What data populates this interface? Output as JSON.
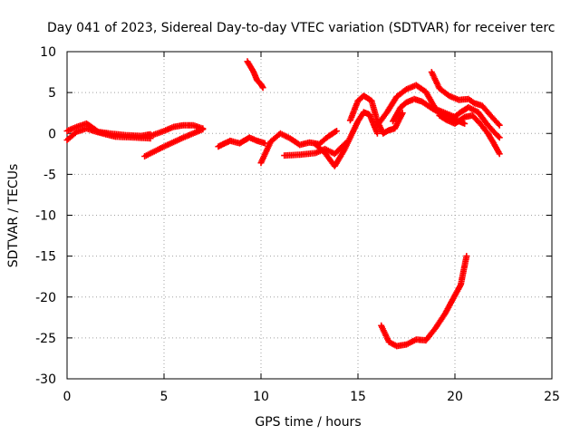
{
  "chart_data": {
    "type": "scatter",
    "title": "Day 041 of 2023, Sidereal Day-to-day VTEC variation (SDTVAR) for receiver terc",
    "xlabel": "GPS time / hours",
    "ylabel": "SDTVAR / TECUs",
    "xlim": [
      0,
      25
    ],
    "ylim": [
      -30,
      10
    ],
    "xticks": [
      0,
      5,
      10,
      15,
      20,
      25
    ],
    "yticks": [
      10,
      5,
      0,
      -5,
      -10,
      -15,
      -20,
      -25,
      -30
    ],
    "grid": true,
    "marker": "plus",
    "color": "#ff0000",
    "series": [
      {
        "name": "s1",
        "x": [
          0,
          0.5,
          1.0,
          1.2,
          1.6,
          2.2,
          3.0,
          3.8,
          4.3
        ],
        "y": [
          0.3,
          0.8,
          1.2,
          0.9,
          0.2,
          0,
          -0.2,
          -0.3,
          -0.1
        ]
      },
      {
        "name": "s2",
        "x": [
          0,
          0.5,
          1.0,
          1.5,
          2.5,
          3.5,
          4.3
        ],
        "y": [
          -0.8,
          0.2,
          0.6,
          0.2,
          -0.4,
          -0.5,
          -0.6
        ]
      },
      {
        "name": "s3",
        "x": [
          4.0,
          5.0,
          6.0,
          7.0
        ],
        "y": [
          -2.8,
          -1.6,
          -0.5,
          0.5
        ]
      },
      {
        "name": "s4",
        "x": [
          4.3,
          5.0,
          5.5,
          6.0,
          6.5,
          7.0
        ],
        "y": [
          -0.3,
          0.3,
          0.8,
          1.0,
          1.0,
          0.6
        ]
      },
      {
        "name": "s5",
        "x": [
          7.8,
          8.4,
          8.9,
          9.4,
          9.8,
          10.2
        ],
        "y": [
          -1.6,
          -0.9,
          -1.2,
          -0.5,
          -0.9,
          -1.2
        ]
      },
      {
        "name": "s6",
        "x": [
          9.3,
          9.6,
          9.8,
          10.0,
          10.1
        ],
        "y": [
          8.8,
          7.6,
          6.5,
          6.0,
          5.6
        ]
      },
      {
        "name": "s7",
        "x": [
          10.0,
          10.5,
          11.0,
          11.5,
          12.0,
          12.5,
          13.0,
          13.5,
          13.9
        ],
        "y": [
          -3.6,
          -1.0,
          0,
          -0.6,
          -1.4,
          -1.1,
          -1.3,
          -0.3,
          0.3
        ]
      },
      {
        "name": "s8",
        "x": [
          11.2,
          12.0,
          12.8,
          13.3,
          13.8,
          14.1,
          14.4
        ],
        "y": [
          -2.7,
          -2.6,
          -2.4,
          -1.9,
          -2.5,
          -1.8,
          -1.1
        ]
      },
      {
        "name": "s9",
        "x": [
          12.8,
          13.3,
          13.8,
          14.3,
          14.7,
          15.0,
          15.3,
          15.6,
          16.0
        ],
        "y": [
          -1.3,
          -2.4,
          -4.0,
          -2.0,
          0,
          1.5,
          2.6,
          2.3,
          0
        ]
      },
      {
        "name": "s10",
        "x": [
          14.6,
          15.0,
          15.3,
          15.7,
          16.0,
          16.3,
          16.6,
          16.9,
          17.3
        ],
        "y": [
          1.6,
          4.0,
          4.6,
          4.0,
          1.5,
          0,
          0.4,
          0.6,
          2.5
        ]
      },
      {
        "name": "s11",
        "x": [
          16.0,
          16.5,
          17.0,
          17.5,
          18.0,
          18.5,
          19.0,
          19.5,
          20.0
        ],
        "y": [
          1.0,
          2.6,
          4.5,
          5.4,
          5.9,
          5.1,
          3.0,
          2.5,
          2.0
        ]
      },
      {
        "name": "s12",
        "x": [
          16.8,
          17.2,
          17.5,
          17.9,
          18.3,
          18.8,
          19.3,
          19.8,
          20.2,
          20.5
        ],
        "y": [
          1.5,
          3.2,
          3.8,
          4.2,
          3.9,
          3.1,
          2.4,
          2.0,
          1.5,
          1.2
        ]
      },
      {
        "name": "s13",
        "x": [
          18.8,
          19.2,
          19.7,
          20.2,
          20.7,
          21.0,
          21.4,
          21.8,
          22.3
        ],
        "y": [
          7.5,
          5.5,
          4.6,
          4.1,
          4.2,
          3.7,
          3.4,
          2.3,
          1.0
        ]
      },
      {
        "name": "s14",
        "x": [
          19.8,
          20.3,
          20.7,
          21.2,
          21.6,
          22.0,
          22.3
        ],
        "y": [
          1.7,
          2.6,
          3.2,
          2.6,
          1.3,
          0.2,
          -0.5
        ]
      },
      {
        "name": "s15",
        "x": [
          19.2,
          19.6,
          20.0,
          20.5,
          20.9,
          21.3,
          21.7,
          22.0,
          22.3
        ],
        "y": [
          2.2,
          1.6,
          1.2,
          2.0,
          2.2,
          1.2,
          0,
          -1.2,
          -2.5
        ]
      },
      {
        "name": "s16",
        "x": [
          16.2,
          16.6,
          17.0,
          17.5,
          18.0,
          18.5,
          19.0,
          19.5,
          20.0,
          20.3,
          20.6
        ],
        "y": [
          -23.5,
          -25.5,
          -26.0,
          -25.8,
          -25.2,
          -25.3,
          -23.8,
          -22.0,
          -19.8,
          -18.5,
          -15.0
        ]
      }
    ]
  }
}
